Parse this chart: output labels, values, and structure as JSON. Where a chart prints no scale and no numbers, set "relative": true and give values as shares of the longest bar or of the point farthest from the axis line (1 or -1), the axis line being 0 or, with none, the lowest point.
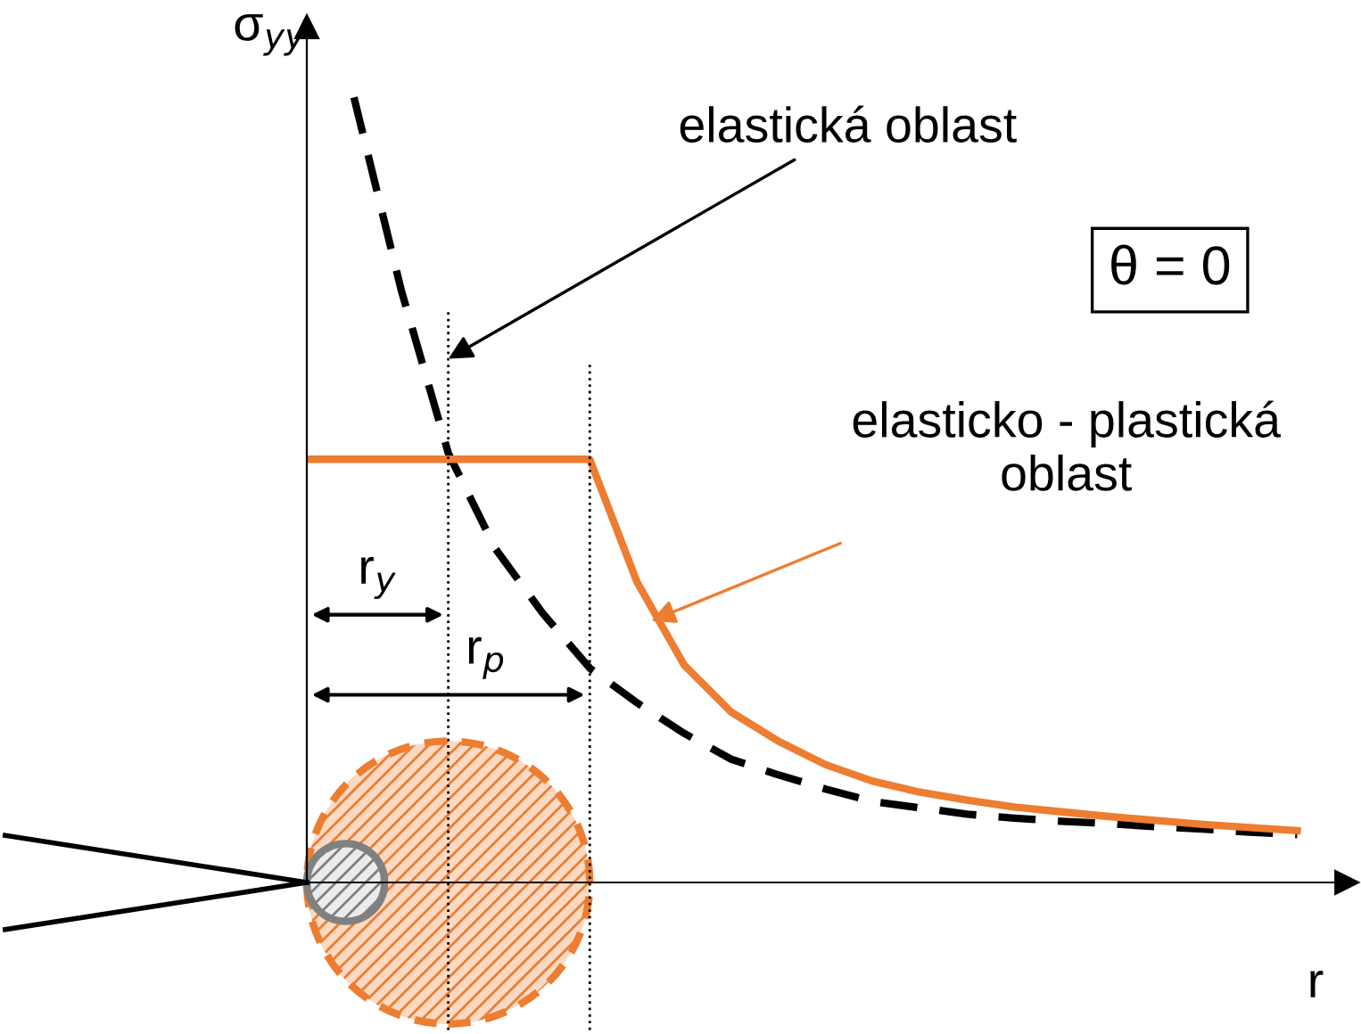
{
  "chart_data": {
    "type": "line",
    "relative": true,
    "ylabel": "σ$_{yy}$",
    "xlabel": "r",
    "categories": [
      null,
      null,
      null,
      null,
      null,
      null,
      null,
      null,
      null,
      null,
      null,
      null,
      null,
      null,
      null,
      null,
      null,
      null,
      null,
      null,
      null,
      null
    ],
    "series": [
      {
        "color": "#000000",
        "line_style": "dashed",
        "values": [
          null,
          1.0,
          0.755,
          0.547,
          0.425,
          0.343,
          0.273,
          0.229,
          0.19,
          0.157,
          0.137,
          0.119,
          0.103,
          0.095,
          0.087,
          0.082,
          0.078,
          0.075,
          0.071,
          0.068,
          0.064,
          0.061
        ]
      },
      {
        "color": "#ed7d31",
        "line_style": "solid",
        "values": [
          0.539,
          0.539,
          0.539,
          0.539,
          0.539,
          0.539,
          0.539,
          0.383,
          0.277,
          0.217,
          0.18,
          0.15,
          0.129,
          0.115,
          0.105,
          0.096,
          0.09,
          0.084,
          0.079,
          0.074,
          0.07,
          0.066
        ]
      }
    ],
    "annotations": [
      "elastická oblast",
      "elasticko - plastická\noblast",
      "θ = 0",
      "r$_{y}$",
      "r$_{p}$"
    ]
  }
}
